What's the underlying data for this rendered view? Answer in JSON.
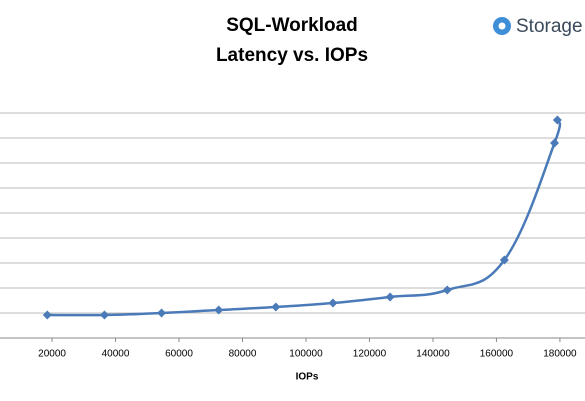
{
  "chart_data": {
    "type": "line",
    "title_lines": [
      "SQL-Workload",
      "Latency vs. IOPs"
    ],
    "x_label": "IOPs",
    "x": [
      18500,
      36500,
      54500,
      72500,
      90500,
      108500,
      126500,
      144500,
      162500,
      178300,
      179200
    ],
    "series": [
      {
        "color": "#4a7ab8",
        "values": [
          0.92,
          0.92,
          1.0,
          1.12,
          1.24,
          1.4,
          1.64,
          1.92,
          3.12,
          7.8,
          8.72
        ]
      }
    ],
    "xlim": [
      3600,
      187900
    ],
    "xticks": [
      20000,
      40000,
      60000,
      80000,
      100000,
      120000,
      140000,
      160000,
      180000
    ],
    "ylim": [
      0,
      10
    ],
    "yticks": [
      0,
      1,
      2,
      3,
      4,
      5,
      6,
      7,
      8,
      9
    ],
    "ytick_labels": false,
    "grid": true,
    "smooth": true
  },
  "logo": {
    "text": "Storage"
  }
}
